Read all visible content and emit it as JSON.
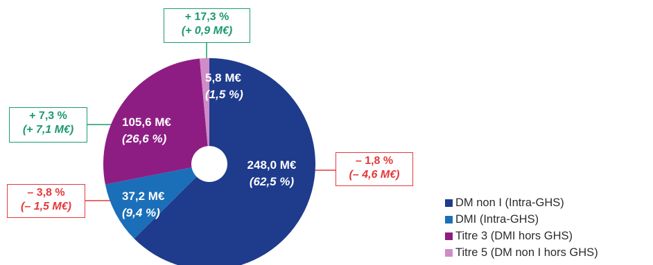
{
  "chart_data": {
    "type": "pie",
    "variant": "donut",
    "slices": [
      {
        "name": "DM non I (Intra-GHS)",
        "value_label": "248,0 M€",
        "share_label": "(62,5 %)",
        "value": 248.0,
        "share": 62.5,
        "color": "#1e3b8c",
        "change": {
          "pct": "– 1,8 %",
          "amount": "(– 4,6 M€)",
          "direction": "down"
        }
      },
      {
        "name": "DMI (Intra-GHS)",
        "value_label": "37,2 M€",
        "share_label": "(9,4 %)",
        "value": 37.2,
        "share": 9.4,
        "color": "#1b6fb8",
        "change": {
          "pct": "– 3,8 %",
          "amount": "(– 1,5 M€)",
          "direction": "down"
        }
      },
      {
        "name": "Titre 3 (DMI hors GHS)",
        "value_label": "105,6 M€",
        "share_label": "(26,6 %)",
        "value": 105.6,
        "share": 26.6,
        "color": "#8e1d83",
        "change": {
          "pct": "+ 7,3 %",
          "amount": "(+ 7,1 M€)",
          "direction": "up"
        }
      },
      {
        "name": "Titre 5 (DM non I hors GHS)",
        "value_label": "5,8 M€",
        "share_label": "(1,5 %)",
        "value": 5.8,
        "share": 1.5,
        "color": "#cf8cc6",
        "change": {
          "pct": "+ 17,3 %",
          "amount": "(+ 0,9 M€)",
          "direction": "up"
        }
      }
    ],
    "legend_position": "bottom-right",
    "colors": {
      "up": "#1a9a6f",
      "down": "#e3393c"
    }
  }
}
